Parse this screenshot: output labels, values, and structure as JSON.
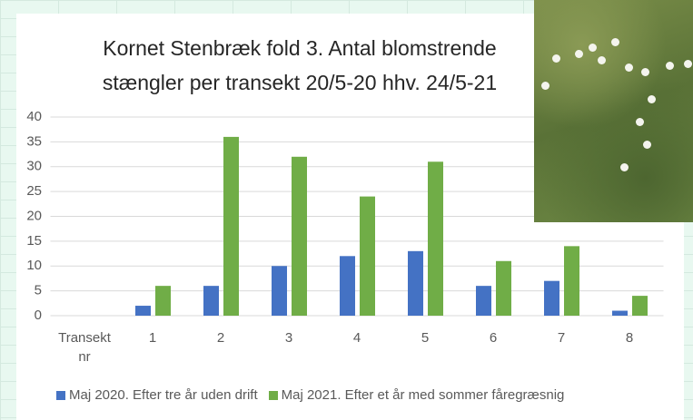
{
  "chart_data": {
    "type": "bar",
    "title": "Kornet Stenbræk fold 3. Antal blomstrende stængler per transekt 20/5-20 hhv. 24/5-21",
    "categories": [
      "Transekt nr",
      "1",
      "2",
      "3",
      "4",
      "5",
      "6",
      "7",
      "8"
    ],
    "series": [
      {
        "name": "Maj 2020. Efter tre år uden drift",
        "color": "#4472c4",
        "values": [
          null,
          2,
          6,
          10,
          12,
          13,
          6,
          7,
          1
        ]
      },
      {
        "name": "Maj 2021. Efter et år med sommer fåregræsnig",
        "color": "#70ad47",
        "values": [
          null,
          6,
          36,
          32,
          24,
          31,
          11,
          14,
          4
        ]
      }
    ],
    "ylim": [
      0,
      40
    ],
    "yticks": [
      0,
      5,
      10,
      15,
      20,
      25,
      30,
      35,
      40
    ],
    "grid": true
  }
}
